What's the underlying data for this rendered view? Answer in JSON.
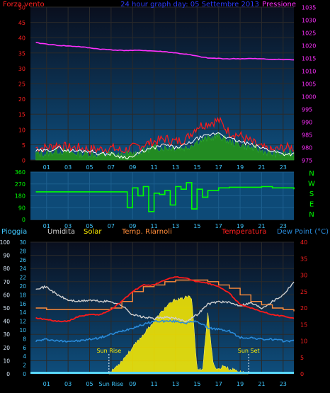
{
  "colors": {
    "background": "#000000",
    "plot_top": "#0e4e7d",
    "plot_bottom": "#0a0f1e",
    "axis_red": "#ff2020",
    "axis_magenta": "#ff30ff",
    "axis_cyan": "#40c8ff",
    "axis_green": "#00ff00",
    "title_blue": "#2a3cff",
    "solar_yellow": "#ffee00",
    "grey": "#cfcfcf",
    "orange": "#ff8c3a",
    "dewpoint_blue": "#2a8ad8",
    "wind_green": "#228b22"
  },
  "chart_data": [
    {
      "type": "line",
      "title": "24 hour graph day: 05 Settembre 2013",
      "left_axis_label": "Forza vento",
      "right_axis_label": "Pressione",
      "left_ticks": [
        "0",
        "5",
        "10",
        "15",
        "20",
        "25",
        "30",
        "35",
        "40",
        "45",
        "50"
      ],
      "right_ticks": [
        "975",
        "980",
        "985",
        "990",
        "995",
        "1000",
        "1005",
        "1010",
        "1015",
        "1020",
        "1025",
        "1030",
        "1035"
      ],
      "x_ticks": [
        "01",
        "03",
        "05",
        "07",
        "09",
        "11",
        "13",
        "15",
        "17",
        "19",
        "21",
        "23"
      ],
      "ylim_left": [
        0,
        50
      ],
      "ylim_right": [
        975,
        1035
      ],
      "series": [
        {
          "key": "pressure",
          "axis": "right",
          "x": [
            0,
            2,
            4,
            6,
            8,
            10,
            12,
            14,
            16,
            18,
            20,
            22,
            24
          ],
          "values": [
            1021,
            1020,
            1019.5,
            1018.5,
            1018,
            1018,
            1017.5,
            1016.5,
            1015,
            1014.7,
            1014.8,
            1014.5,
            1014.3
          ]
        },
        {
          "key": "wind_gust",
          "axis": "left",
          "x": [
            0,
            1,
            2,
            3,
            4,
            5,
            6,
            7,
            8,
            9,
            10,
            11,
            12,
            13,
            14,
            15,
            16,
            17,
            18,
            19,
            20,
            21,
            22,
            23,
            24
          ],
          "values": [
            4,
            4,
            5,
            4,
            4,
            3.5,
            3.5,
            4,
            3,
            4,
            5,
            6,
            7,
            6,
            7,
            11,
            12,
            13,
            9,
            8,
            6,
            4,
            3,
            4,
            4
          ]
        },
        {
          "key": "wind_mean",
          "axis": "left",
          "x": [
            0,
            1,
            2,
            3,
            4,
            5,
            6,
            7,
            8,
            9,
            10,
            11,
            12,
            13,
            14,
            15,
            16,
            17,
            18,
            19,
            20,
            21,
            22,
            23,
            24
          ],
          "values": [
            2,
            2,
            3,
            2.5,
            2,
            2,
            1.5,
            2,
            1.5,
            2,
            3,
            4,
            4,
            4,
            4,
            6,
            7,
            8,
            6,
            5,
            4,
            3,
            2,
            2,
            2
          ]
        },
        {
          "key": "wind_avg",
          "axis": "left",
          "x": [
            0,
            1,
            2,
            3,
            4,
            5,
            6,
            7,
            8,
            9,
            10,
            11,
            12,
            13,
            14,
            15,
            16,
            17,
            18,
            19,
            20,
            21,
            22,
            23,
            24
          ],
          "values": [
            3,
            3,
            4,
            3,
            3,
            3,
            2,
            2,
            1,
            1,
            3,
            4,
            5,
            4,
            5,
            7,
            8,
            9,
            7,
            6,
            5,
            4,
            3,
            2,
            2
          ]
        }
      ]
    },
    {
      "type": "line",
      "title": "",
      "left_ticks": [
        "0",
        "90",
        "180",
        "270",
        "360"
      ],
      "compass": [
        "N",
        "W",
        "S",
        "E",
        "N"
      ],
      "x_ticks": [
        "01",
        "03",
        "05",
        "07",
        "09",
        "11",
        "13",
        "15",
        "17",
        "19",
        "21",
        "23"
      ],
      "ylim": [
        0,
        360
      ],
      "series": [
        {
          "key": "wind_dir",
          "x": [
            0,
            1,
            2,
            3,
            4,
            5,
            6,
            7,
            8,
            8.5,
            9,
            9.5,
            10,
            10.5,
            11,
            11.5,
            12,
            12.5,
            13,
            13.5,
            14,
            14.5,
            15,
            15.5,
            16,
            17,
            18,
            19,
            20,
            21,
            22,
            23,
            24
          ],
          "values": [
            210,
            210,
            210,
            210,
            210,
            210,
            210,
            210,
            210,
            90,
            240,
            180,
            250,
            60,
            200,
            190,
            220,
            110,
            250,
            230,
            280,
            80,
            230,
            170,
            220,
            240,
            245,
            245,
            245,
            250,
            240,
            240,
            230
          ]
        }
      ]
    },
    {
      "type": "line",
      "title": "",
      "labels": [
        "Pioggia",
        "Umidita",
        "Solar",
        "Temp. Riarnoli",
        "Temperatura",
        "Dew Point (°C)"
      ],
      "left_ticks": [
        "0",
        "10",
        "20",
        "30",
        "40",
        "50",
        "60",
        "70",
        "80",
        "90",
        "100"
      ],
      "inner_ticks": [
        "0",
        "2",
        "4",
        "6",
        "8",
        "10",
        "12",
        "14",
        "16",
        "18",
        "20",
        "22",
        "24",
        "26",
        "28",
        "30"
      ],
      "right_ticks": [
        "0",
        "5",
        "10",
        "15",
        "20",
        "25",
        "30",
        "35",
        "40"
      ],
      "x_ticks": [
        "01",
        "03",
        "05",
        "Sun Rise",
        "09",
        "11",
        "13",
        "15",
        "17",
        "19",
        "21",
        "23"
      ],
      "annotations": {
        "sunrise": "Sun Rise",
        "sunset": "Sun Set"
      },
      "sunrise_hour": 6.8,
      "sunset_hour": 19.8,
      "ylim_left": [
        0,
        100
      ],
      "ylim_right": [
        0,
        40
      ],
      "series": [
        {
          "key": "humidity",
          "axis": "left",
          "x": [
            0,
            1,
            2,
            3,
            4,
            5,
            6,
            7,
            8,
            9,
            10,
            11,
            12,
            13,
            14,
            15,
            16,
            17,
            18,
            19,
            20,
            21,
            22,
            23,
            24
          ],
          "values": [
            65,
            66,
            60,
            56,
            55,
            56,
            55,
            55,
            52,
            45,
            43,
            42,
            43,
            42,
            40,
            45,
            53,
            55,
            54,
            52,
            54,
            50,
            55,
            60,
            70
          ]
        },
        {
          "key": "temp_out",
          "axis": "right",
          "x": [
            0,
            1,
            2,
            3,
            4,
            5,
            6,
            7,
            8,
            9,
            10,
            11,
            12,
            13,
            14,
            15,
            16,
            17,
            18,
            19,
            20,
            21,
            22,
            23,
            24
          ],
          "values": [
            17,
            16.5,
            16,
            16,
            17.5,
            18,
            18,
            19.5,
            22,
            25,
            27,
            27,
            28.5,
            29.5,
            29,
            28,
            27.5,
            26.5,
            24.5,
            21,
            20,
            19,
            18,
            17.5,
            17
          ]
        },
        {
          "key": "temp_in",
          "axis": "right",
          "x": [
            0,
            1,
            2,
            3,
            4,
            5,
            6,
            7,
            8,
            9,
            10,
            11,
            12,
            13,
            14,
            15,
            16,
            17,
            18,
            19,
            20,
            21,
            22,
            23,
            24
          ],
          "values": [
            20,
            19.5,
            19.5,
            19.5,
            19.5,
            19.5,
            19.5,
            20,
            22,
            25,
            26.5,
            27,
            28,
            28.5,
            28.5,
            28.5,
            28,
            27,
            26,
            24,
            22,
            21,
            20,
            19.5,
            19
          ]
        },
        {
          "key": "dew_point",
          "axis": "right",
          "x": [
            0,
            1,
            2,
            3,
            4,
            5,
            6,
            7,
            8,
            9,
            10,
            11,
            12,
            13,
            14,
            15,
            16,
            17,
            18,
            19,
            20,
            21,
            22,
            23,
            24
          ],
          "values": [
            10,
            10.5,
            10,
            10,
            10,
            10.5,
            11,
            12,
            13,
            14,
            15,
            16,
            16,
            16,
            15.5,
            16,
            14,
            13.5,
            13,
            11,
            11,
            10.5,
            10.5,
            10,
            10
          ]
        },
        {
          "key": "solar",
          "axis": "inner",
          "x": [
            6.8,
            8,
            9,
            10,
            11,
            12,
            12.5,
            13,
            13.5,
            14,
            14.5,
            15,
            15.5,
            16,
            16.5,
            17,
            17.5,
            18,
            18.5,
            19,
            19.8
          ],
          "values": [
            0,
            3,
            6,
            9,
            12,
            15,
            16,
            17,
            17,
            17.5,
            17.5,
            1,
            1,
            14,
            2,
            1,
            2,
            1,
            1,
            0.5,
            0
          ]
        }
      ]
    }
  ]
}
